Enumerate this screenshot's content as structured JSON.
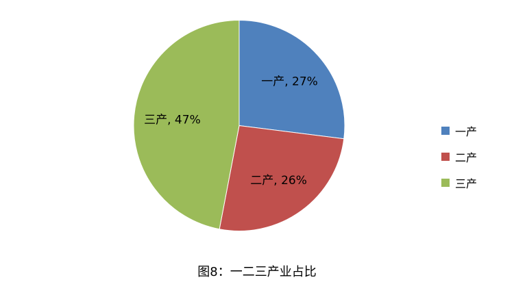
{
  "chart_data": {
    "type": "pie",
    "title": "",
    "caption": "图8：一二三产业占比",
    "categories": [
      "一产",
      "二产",
      "三产"
    ],
    "values": [
      27,
      26,
      47
    ],
    "data_labels": [
      "一产, 27%",
      "二产, 26%",
      "三产, 47%"
    ],
    "colors": [
      "#4F81BD",
      "#C0504D",
      "#9BBB59"
    ],
    "start_angle": "top",
    "direction": "clockwise",
    "legend_position": "right"
  }
}
